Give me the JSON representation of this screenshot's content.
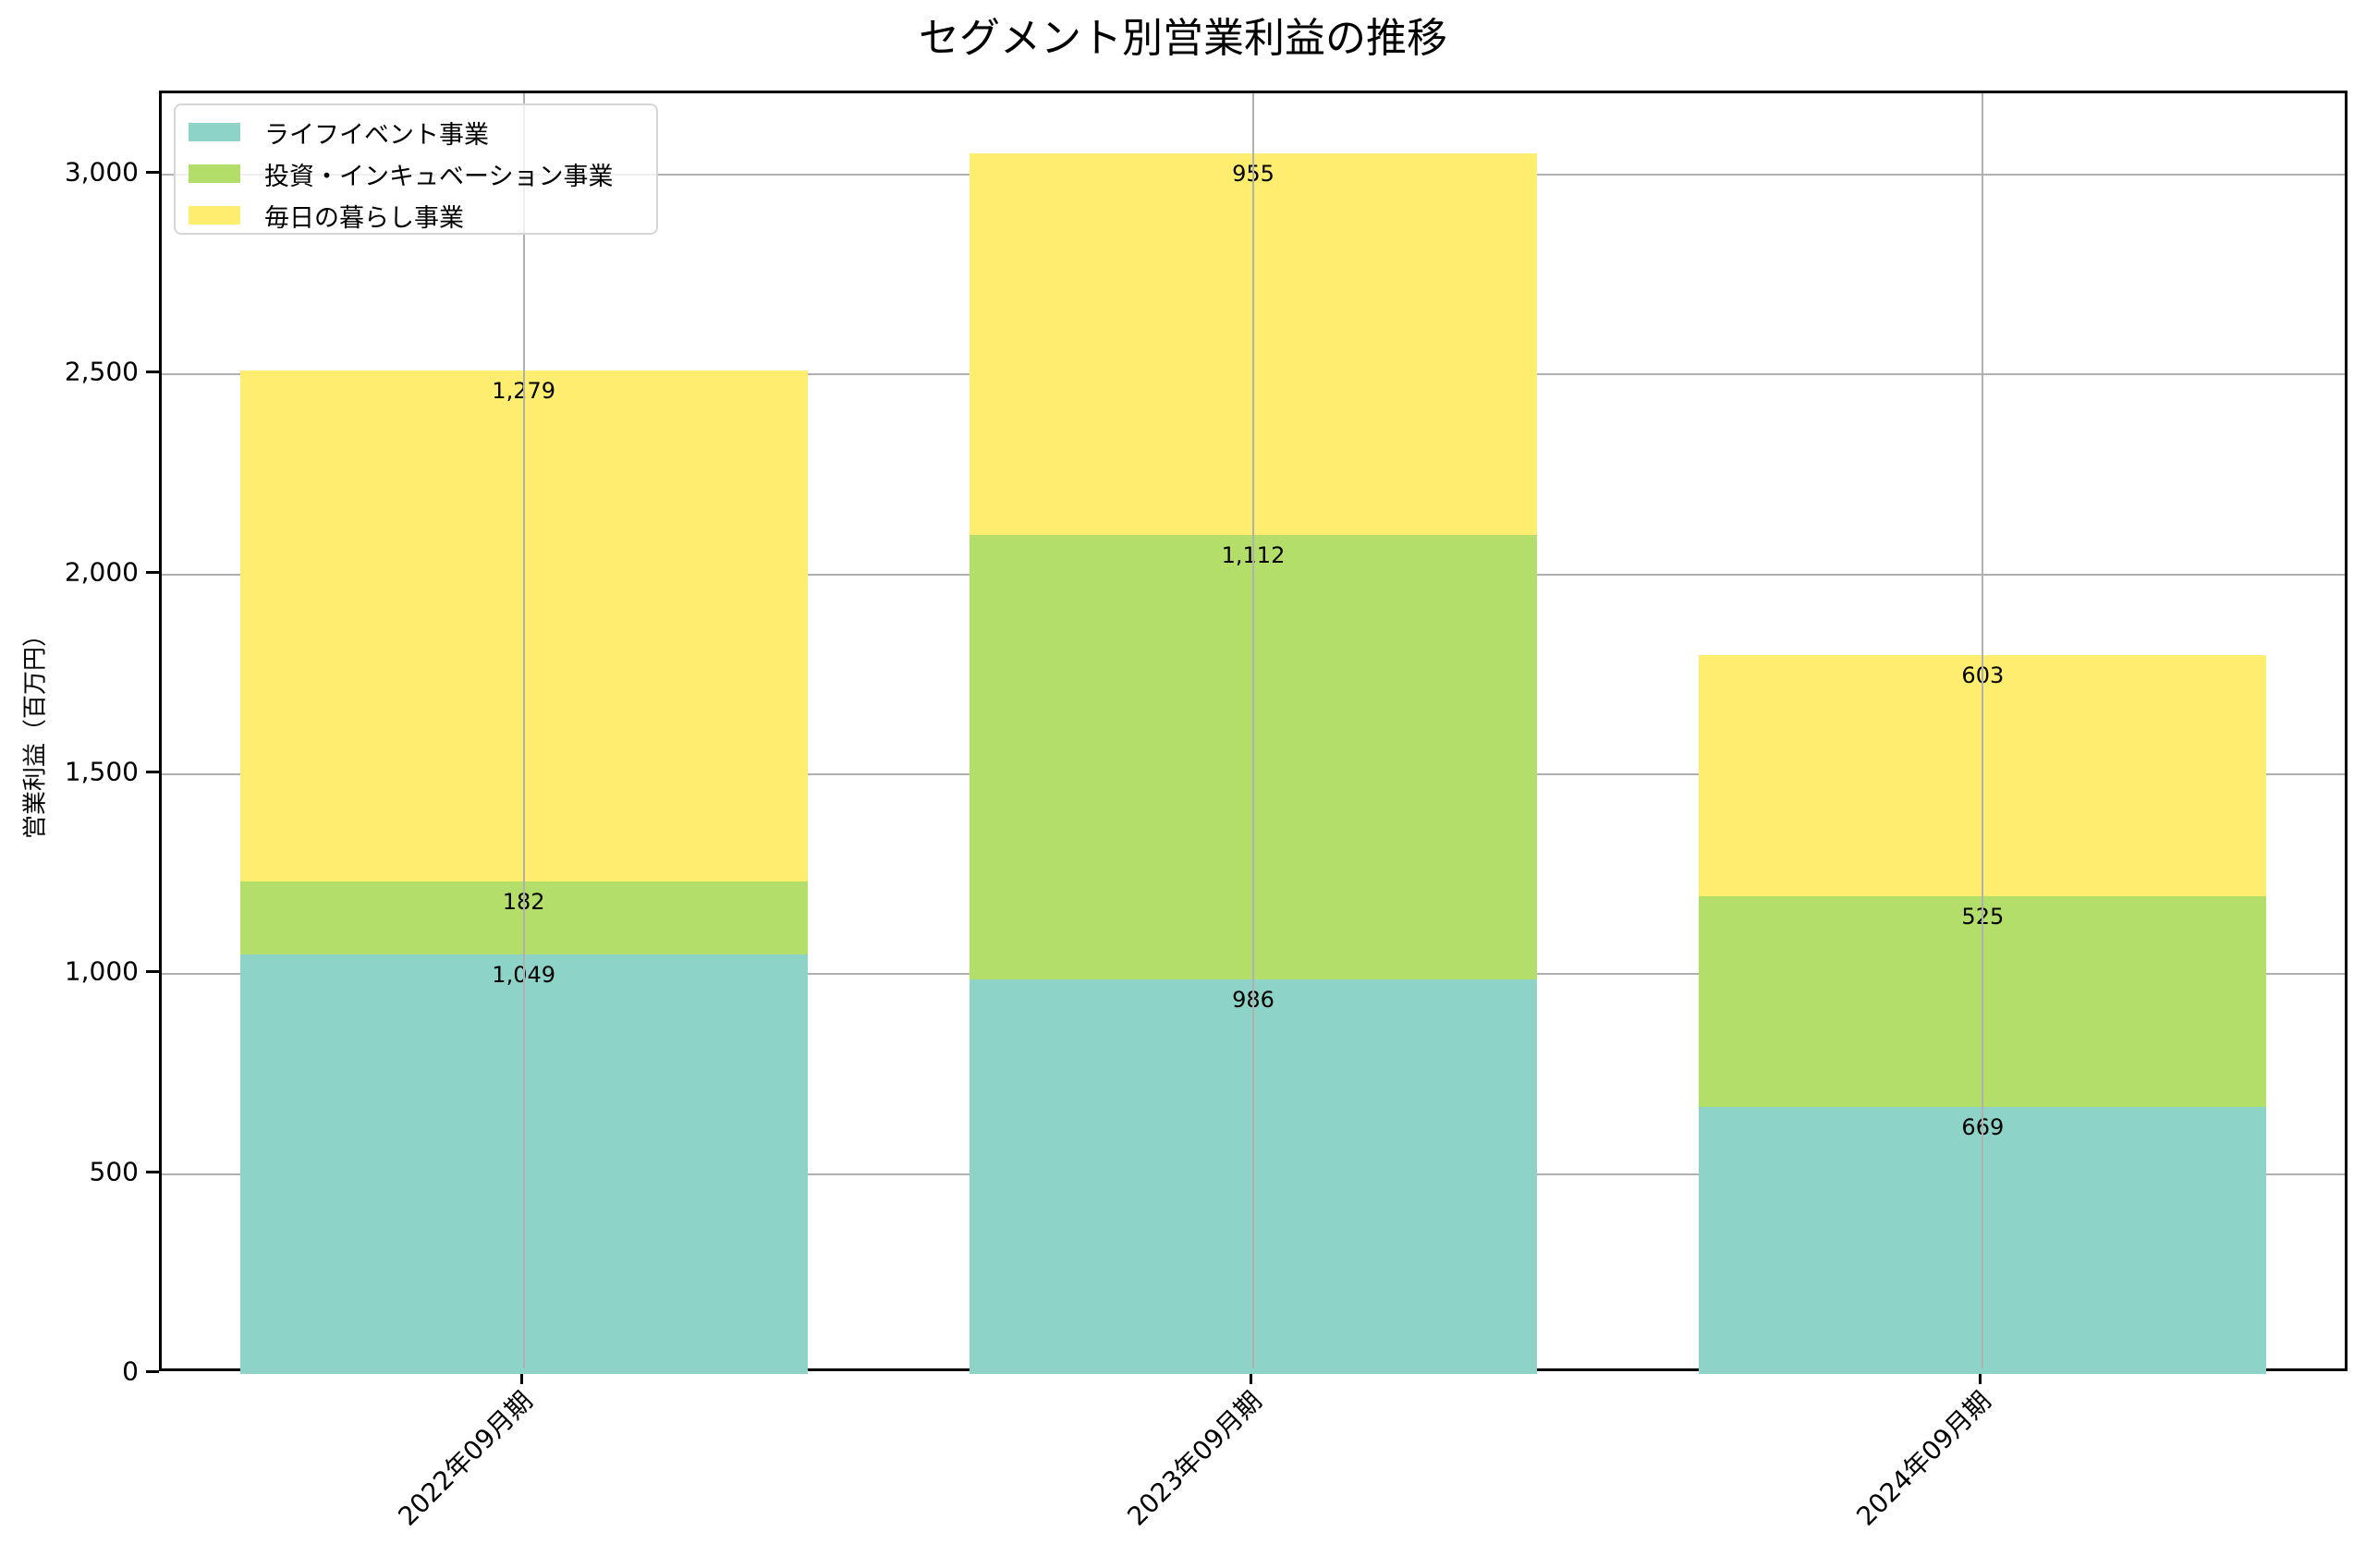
{
  "chart_data": {
    "type": "bar",
    "stacked": true,
    "title": "セグメント別営業利益の推移",
    "xlabel": "",
    "ylabel": "営業利益（百万円）",
    "categories": [
      "2022年09月期",
      "2023年09月期",
      "2024年09月期"
    ],
    "series": [
      {
        "name": "ライフイベント事業",
        "color": "#8dd3c7",
        "values": [
          1049,
          986,
          669
        ],
        "labels": [
          "1,049",
          "986",
          "669"
        ]
      },
      {
        "name": "投資・インキュベーション事業",
        "color": "#b3de69",
        "values": [
          182,
          1112,
          525
        ],
        "labels": [
          "182",
          "1,112",
          "525"
        ]
      },
      {
        "name": "毎日の暮らし事業",
        "color": "#ffed6f",
        "values": [
          1279,
          955,
          603
        ],
        "labels": [
          "1,279",
          "955",
          "603"
        ]
      }
    ],
    "ylim": [
      0,
      3203
    ],
    "yticks": [
      0,
      500,
      1000,
      1500,
      2000,
      2500,
      3000
    ],
    "ytick_labels": [
      "0",
      "500",
      "1,000",
      "1,500",
      "2,000",
      "2,500",
      "3,000"
    ],
    "grid": true,
    "legend_position": "upper left"
  }
}
